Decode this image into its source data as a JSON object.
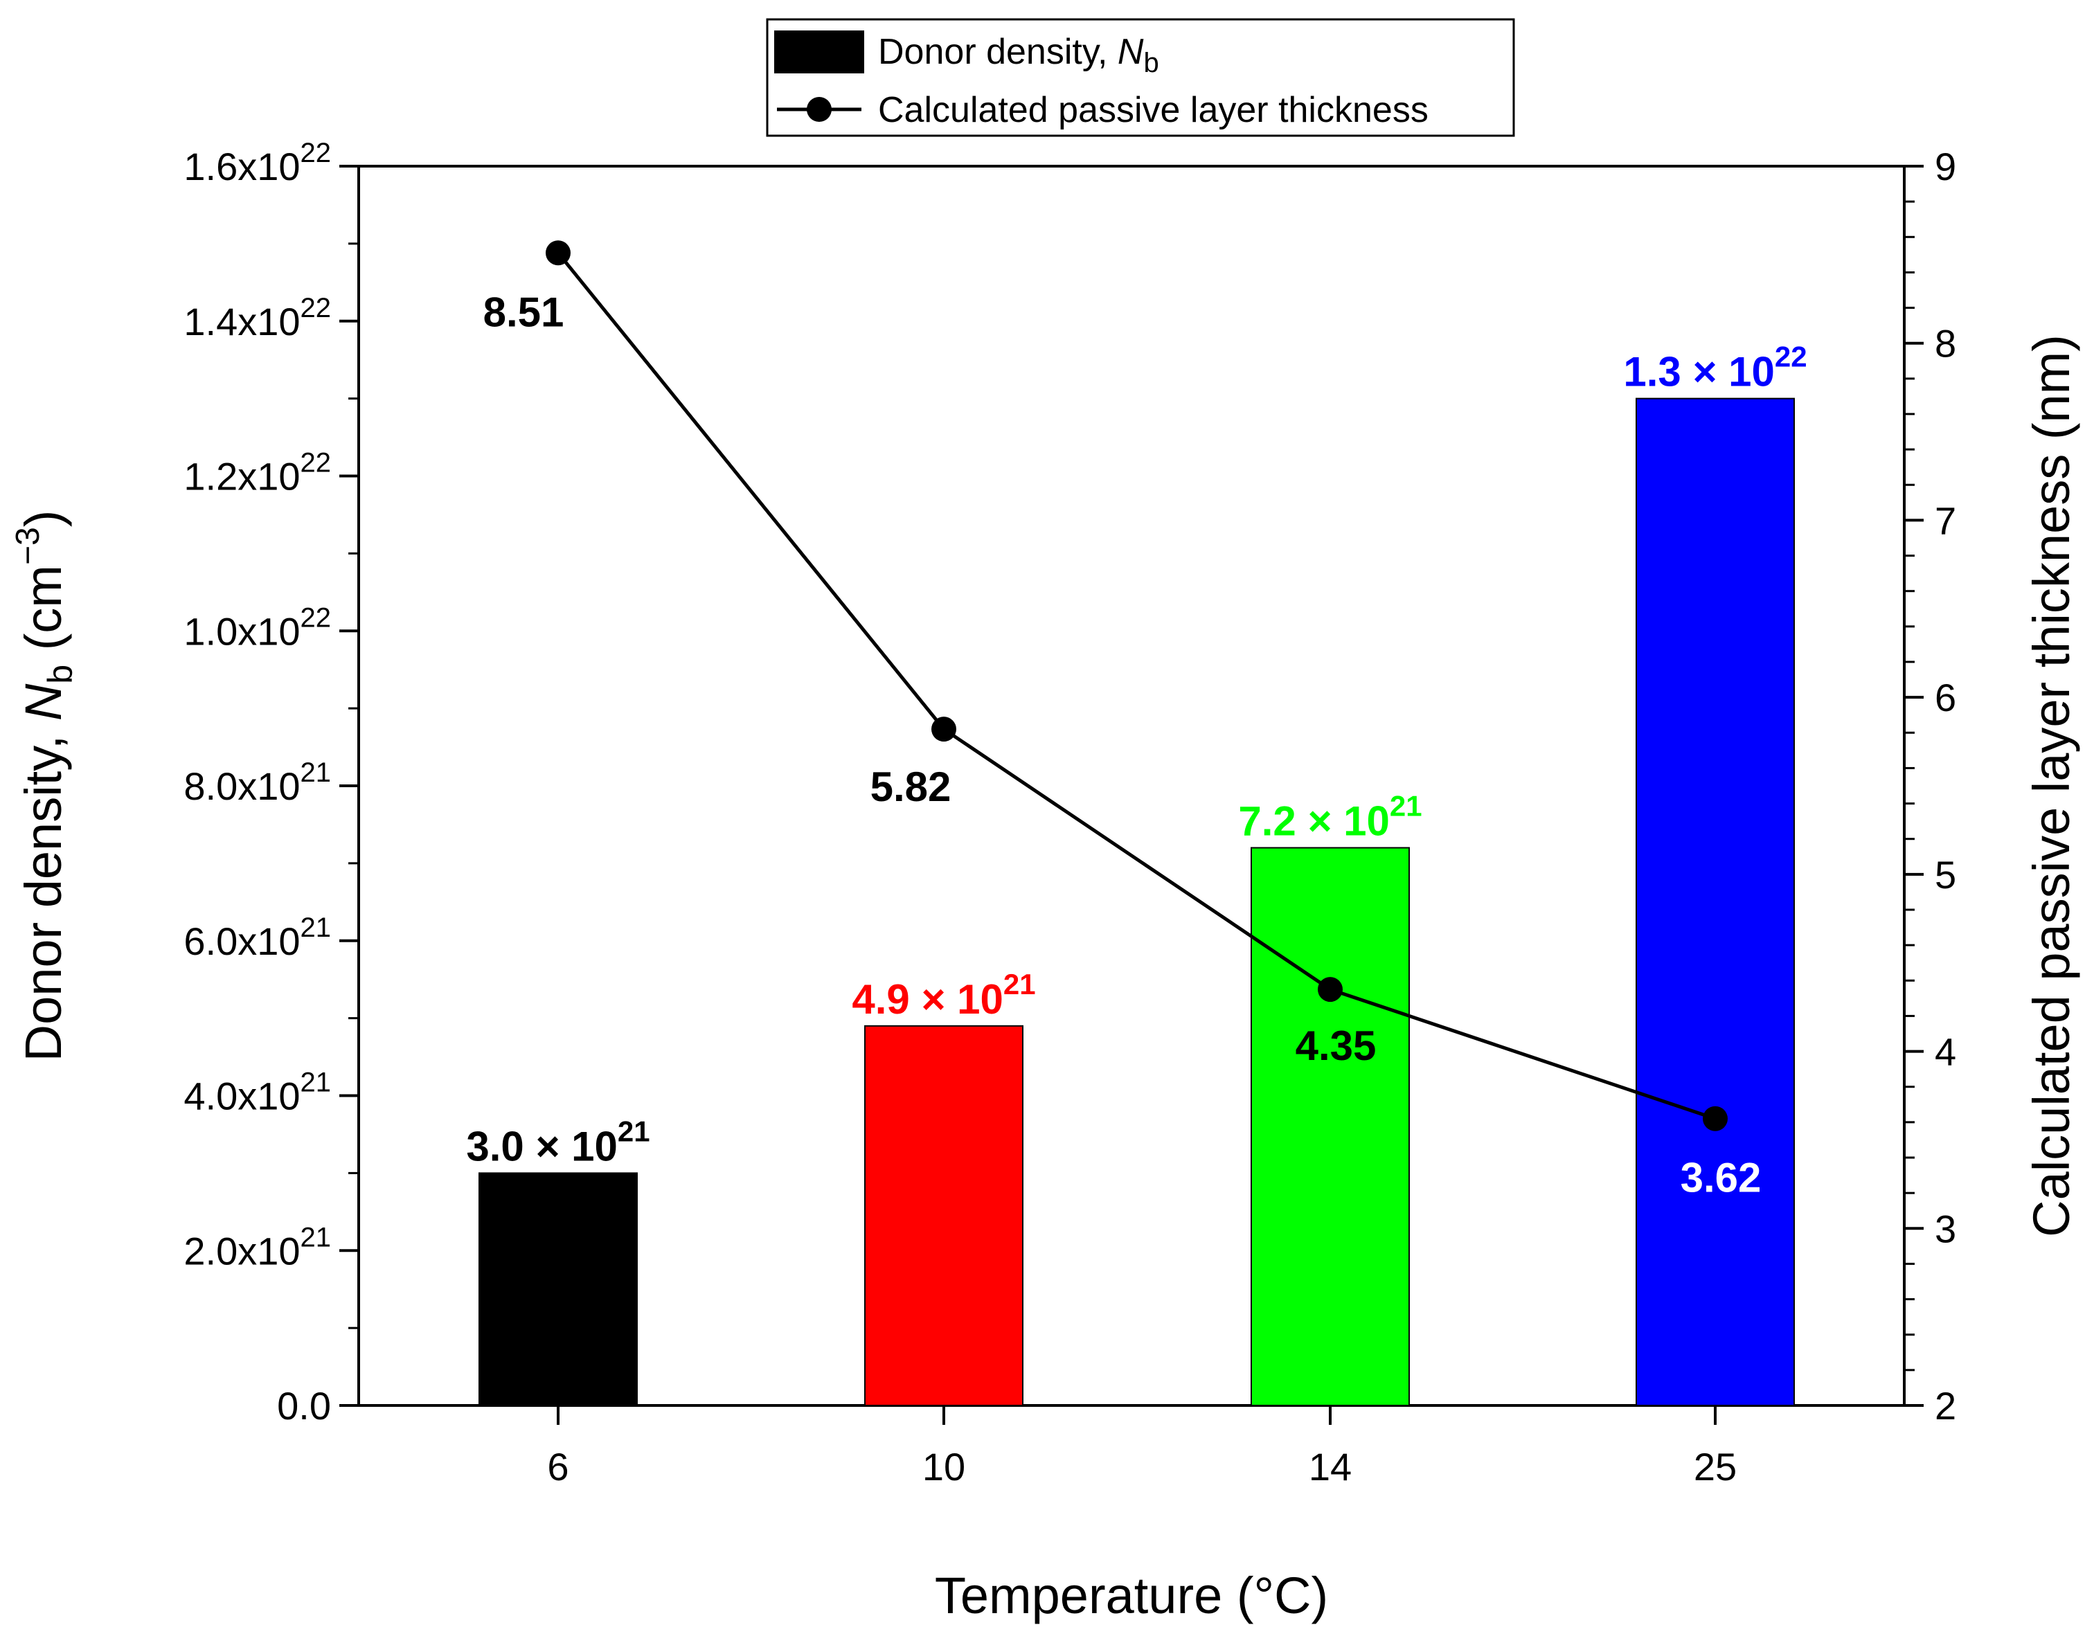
{
  "chart_data": {
    "type": "bar",
    "xlabel": "Temperature (°C)",
    "categories": [
      "6",
      "10",
      "14",
      "25"
    ],
    "left_axis": {
      "title_main": "Donor density, ",
      "title_var": "N",
      "title_sub": "b",
      "title_unit": " (cm",
      "title_exp": "−3",
      "title_close": ")",
      "ylim": [
        0,
        1.6e+22
      ],
      "ticks": [
        {
          "value": 0,
          "mant": "0.0",
          "exp": ""
        },
        {
          "value": 2e+21,
          "mant": "2.0x10",
          "exp": "21"
        },
        {
          "value": 4e+21,
          "mant": "4.0x10",
          "exp": "21"
        },
        {
          "value": 6e+21,
          "mant": "6.0x10",
          "exp": "21"
        },
        {
          "value": 8e+21,
          "mant": "8.0x10",
          "exp": "21"
        },
        {
          "value": 1e+22,
          "mant": "1.0x10",
          "exp": "22"
        },
        {
          "value": 1.2e+22,
          "mant": "1.2x10",
          "exp": "22"
        },
        {
          "value": 1.4e+22,
          "mant": "1.4x10",
          "exp": "22"
        },
        {
          "value": 1.6e+22,
          "mant": "1.6x10",
          "exp": "22"
        }
      ]
    },
    "right_axis": {
      "title": "Calculated passive layer thickness (nm)",
      "ylim": [
        2,
        9
      ],
      "ticks": [
        "2",
        "3",
        "4",
        "5",
        "6",
        "7",
        "8",
        "9"
      ]
    },
    "bar_series": {
      "name": "Donor density, ",
      "name_var": "N",
      "name_sub": "b",
      "values": [
        3e+21,
        4.9e+21,
        7.2e+21,
        1.3e+22
      ],
      "colors": [
        "#000000",
        "#ff0000",
        "#00ff00",
        "#0000ff"
      ],
      "labels": [
        {
          "mant": "3.0 × 10",
          "exp": "21"
        },
        {
          "mant": "4.9 × 10",
          "exp": "21"
        },
        {
          "mant": "7.2 × 10",
          "exp": "21"
        },
        {
          "mant": "1.3 × 10",
          "exp": "22"
        }
      ]
    },
    "line_series": {
      "name": "Calculated passive layer thickness",
      "values": [
        8.51,
        5.82,
        4.35,
        3.62
      ],
      "labels": [
        "8.51",
        "5.82",
        "4.35",
        "3.62"
      ],
      "label_colors": [
        "#000000",
        "#000000",
        "#000000",
        "#ffffff"
      ]
    },
    "legend_position": "top-center"
  }
}
